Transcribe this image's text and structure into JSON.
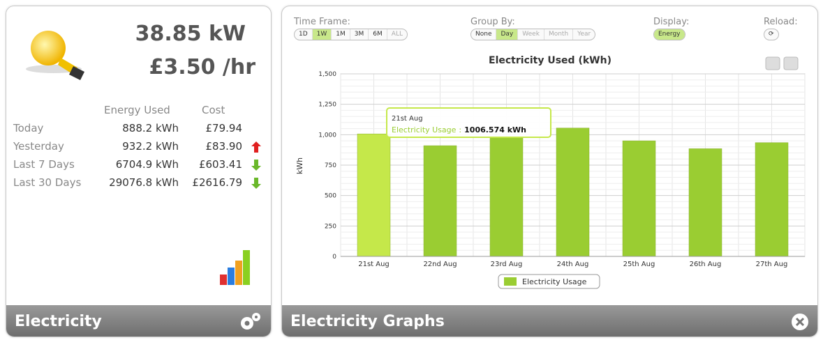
{
  "summary_panel": {
    "power": "38.85 kW",
    "rate": "£3.50 /hr",
    "columns": [
      "Energy Used",
      "Cost"
    ],
    "rows": [
      {
        "label": "Today",
        "energy": "888.2 kWh",
        "cost": "£79.94",
        "trend": null
      },
      {
        "label": "Yesterday",
        "energy": "932.2 kWh",
        "cost": "£83.90",
        "trend": "up"
      },
      {
        "label": "Last 7 Days",
        "energy": "6704.9 kWh",
        "cost": "£603.41",
        "trend": "down"
      },
      {
        "label": "Last 30 Days",
        "energy": "29076.8 kWh",
        "cost": "£2616.79",
        "trend": "down"
      }
    ],
    "footer": "Electricity"
  },
  "graph_panel": {
    "controls": [
      {
        "label": "Time Frame:",
        "options": [
          "1D",
          "1W",
          "1M",
          "3M",
          "6M",
          "ALL"
        ],
        "active_index": 1,
        "disabled": [
          5
        ]
      },
      {
        "label": "Group By:",
        "options": [
          "None",
          "Day",
          "Week",
          "Month",
          "Year"
        ],
        "active_index": 1,
        "disabled": [
          2,
          3,
          4
        ]
      },
      {
        "label": "Display:",
        "options": [
          "Energy"
        ],
        "active_index": 0,
        "disabled": []
      },
      {
        "label": "Reload:",
        "options": [
          "⟳"
        ],
        "active_index": null,
        "disabled": []
      }
    ],
    "footer": "Electricity Graphs"
  },
  "chart_data": {
    "type": "bar",
    "title": "Electricity Used (kWh)",
    "y_label": "kWh",
    "categories": [
      "21st Aug",
      "22nd Aug",
      "23rd Aug",
      "24th Aug",
      "25th Aug",
      "26th Aug",
      "27th Aug"
    ],
    "series": [
      {
        "name": "Electricity Usage",
        "color": "#9acd32",
        "values": [
          1006.574,
          910,
          975,
          1055,
          950,
          885,
          935
        ]
      }
    ],
    "highlight_color": "#c5e84a",
    "ylim": [
      0,
      1500
    ],
    "yticks": [
      0,
      250,
      500,
      750,
      {
        "value": 1000,
        "label": "1,000"
      },
      {
        "value": 1250,
        "label": "1,250"
      },
      {
        "value": 1500,
        "label": "1,500"
      }
    ],
    "grid": true,
    "tooltip": {
      "separator": ":",
      "label": "1006.574 kWh"
    }
  }
}
